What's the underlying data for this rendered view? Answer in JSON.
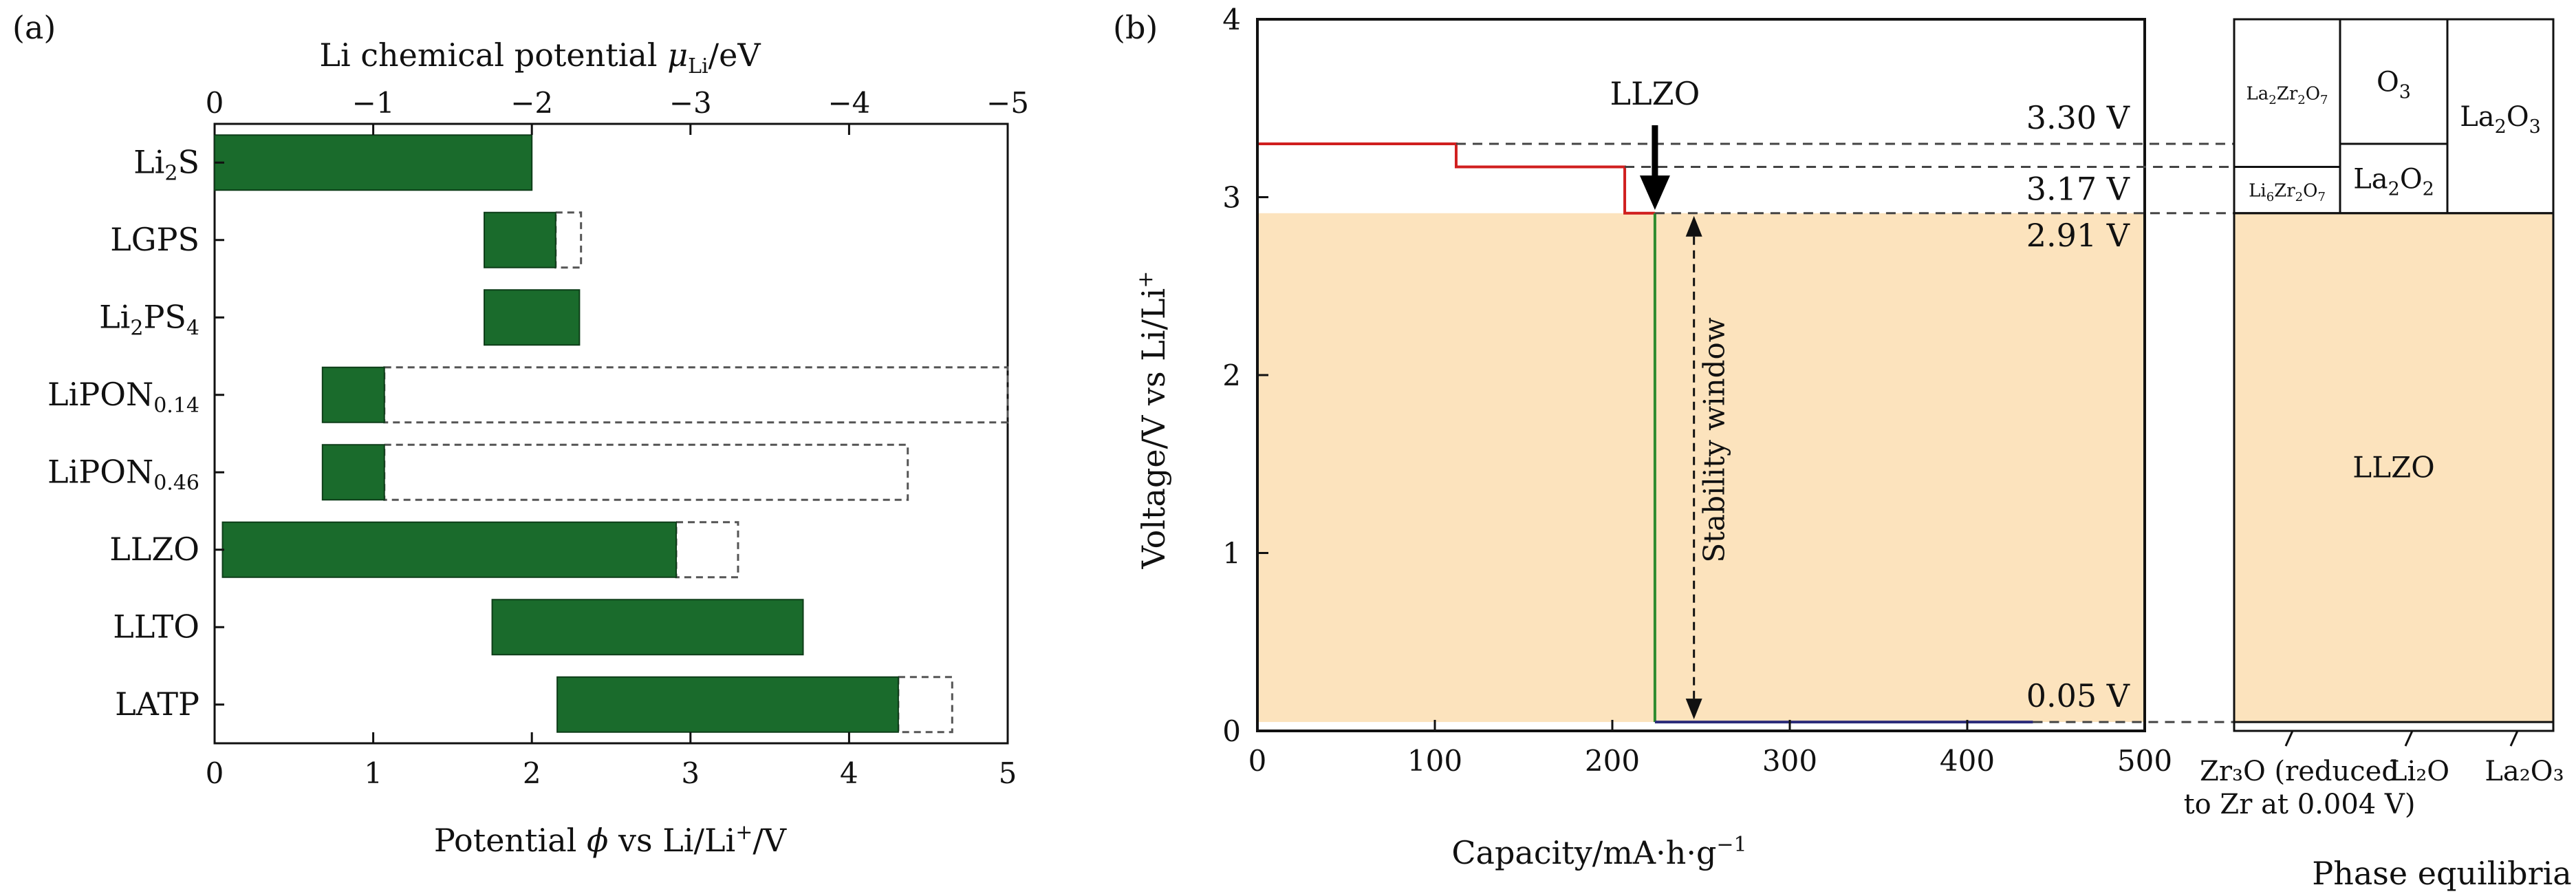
{
  "chart_data": [
    {
      "panel_label": "(a)",
      "type": "bar",
      "orientation": "horizontal",
      "categories": [
        "Li2S",
        "LGPS",
        "Li2PS4",
        "LiPON0.14",
        "LiPON0.46",
        "LLZO",
        "LLTO",
        "LATP"
      ],
      "category_labels": [
        {
          "main": "Li",
          "sub": "2",
          "rest": "S",
          "sub2": ""
        },
        {
          "main": "LGPS",
          "sub": "",
          "rest": "",
          "sub2": ""
        },
        {
          "main": "Li",
          "sub": "2",
          "rest": "PS",
          "sub2": "4"
        },
        {
          "main": "LiPON",
          "sub": "0.14",
          "rest": "",
          "sub2": ""
        },
        {
          "main": "LiPON",
          "sub": "0.46",
          "rest": "",
          "sub2": ""
        },
        {
          "main": "LLZO",
          "sub": "",
          "rest": "",
          "sub2": ""
        },
        {
          "main": "LLTO",
          "sub": "",
          "rest": "",
          "sub2": ""
        },
        {
          "main": "LATP",
          "sub": "",
          "rest": "",
          "sub2": ""
        }
      ],
      "series": [
        {
          "values": [
            [
              0.0,
              2.0
            ],
            [
              1.7,
              2.15
            ],
            [
              1.7,
              2.3
            ],
            [
              0.68,
              1.07
            ],
            [
              0.68,
              1.07
            ],
            [
              0.05,
              2.91
            ],
            [
              1.75,
              3.71
            ],
            [
              2.16,
              4.31
            ]
          ]
        },
        {
          "values": [
            [
              0.0,
              2.0
            ],
            [
              1.7,
              2.31
            ],
            [
              1.7,
              2.3
            ],
            [
              0.68,
              5.0
            ],
            [
              0.68,
              4.37
            ],
            [
              0.05,
              3.3
            ],
            [
              1.75,
              3.71
            ],
            [
              2.16,
              4.65
            ]
          ]
        }
      ],
      "xlabel": {
        "main": "Potential ",
        "var": "ϕ",
        "mid": " vs Li/Li",
        "sup": "+",
        "end": "/V"
      },
      "xlim": [
        0,
        5
      ],
      "xticks": [
        "0",
        "1",
        "2",
        "3",
        "4",
        "5"
      ],
      "top_axis": {
        "label": {
          "main": "Li chemical potential ",
          "var": "μ",
          "sub": "Li",
          "end": "/eV"
        },
        "ticks": [
          "0",
          "−1",
          "−2",
          "−3",
          "−4",
          "−5"
        ]
      },
      "colors": {
        "bar": "#1a6b2c",
        "dashed": "#555555"
      }
    },
    {
      "panel_label": "(b)",
      "type": "line",
      "xlabel": {
        "main": "Capacity/mA·h·g",
        "sup": "−1"
      },
      "ylabel": {
        "main": "Voltage/V vs Li/Li",
        "sup": "+"
      },
      "xlim": [
        0,
        500
      ],
      "ylim": [
        0,
        4
      ],
      "xticks": [
        "0",
        "100",
        "200",
        "300",
        "400",
        "500"
      ],
      "yticks": [
        "0",
        "1",
        "2",
        "3",
        "4"
      ],
      "series": [
        {
          "color": "#d01f1f",
          "points": [
            [
              0,
              3.3
            ],
            [
              112,
              3.3
            ],
            [
              112,
              3.17
            ],
            [
              207,
              3.17
            ],
            [
              207,
              2.91
            ],
            [
              224,
              2.91
            ]
          ]
        },
        {
          "color": "#2e8b2e",
          "points": [
            [
              224,
              2.91
            ],
            [
              224,
              0.05
            ]
          ]
        },
        {
          "color": "#2b2b7a",
          "points": [
            [
              224,
              0.05
            ],
            [
              437,
              0.05
            ]
          ]
        }
      ],
      "shaded_region": {
        "y": [
          0.05,
          2.91
        ],
        "color": "#fce3bd"
      },
      "voltage_labels": [
        {
          "text": "3.30 V",
          "y": 3.3,
          "color": "#d01f1f"
        },
        {
          "text": "3.17 V",
          "y": 3.17,
          "color": "#d01f1f"
        },
        {
          "text": "2.91 V",
          "y": 2.91,
          "color": "#d01f1f"
        },
        {
          "text": "0.05 V",
          "y": 0.05,
          "color": "#111111"
        }
      ],
      "annotations": {
        "arrow_label": "LLZO",
        "arrow_x": 224,
        "window_label": "Stability window"
      },
      "phase_equilibria": {
        "title": "Phase equilibria",
        "columns": [
          {
            "segments": [
              {
                "y": [
                  3.17,
                  2.91
                ],
                "label": {
                  "main": "Li",
                  "sub1": "6",
                  "mid": "Zr",
                  "sub2": "2",
                  "end": "O",
                  "sub3": "7"
                }
              },
              {
                "y": [
                  4.0,
                  3.17
                ],
                "label": {
                  "main": "La",
                  "sub1": "2",
                  "mid": "Zr",
                  "sub2": "2",
                  "end": "O",
                  "sub3": "7"
                }
              }
            ]
          },
          {
            "segments": [
              {
                "y": [
                  3.3,
                  2.91
                ],
                "label": {
                  "main": "La",
                  "sub1": "2",
                  "mid": "O",
                  "sub2": "2",
                  "end": "",
                  "sub3": ""
                }
              },
              {
                "y": [
                  4.0,
                  3.3
                ],
                "label": {
                  "main": "O",
                  "sub1": "3",
                  "mid": "",
                  "sub2": "",
                  "end": "",
                  "sub3": ""
                }
              }
            ]
          },
          {
            "segments": [
              {
                "y": [
                  4.0,
                  2.91
                ],
                "label": {
                  "main": "La",
                  "sub1": "2",
                  "mid": "O",
                  "sub2": "3",
                  "end": "",
                  "sub3": ""
                }
              }
            ]
          }
        ],
        "middle_label": "LLZO",
        "bottom_labels": [
          {
            "line1": "Zr₃O (reduced",
            "line2": "to Zr at 0.004 V)"
          },
          {
            "line1": "Li₂O",
            "line2": ""
          },
          {
            "line1": "La₂O₃",
            "line2": ""
          }
        ]
      }
    }
  ]
}
